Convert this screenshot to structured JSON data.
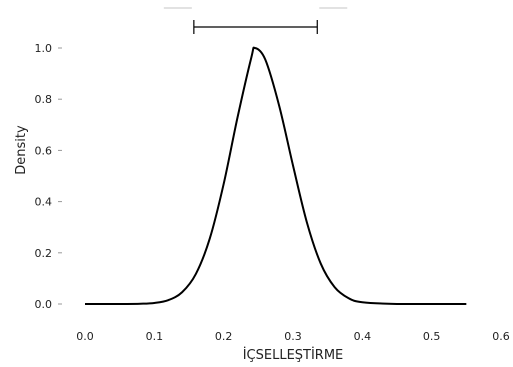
{
  "chart_data": {
    "type": "line",
    "title": "",
    "xlabel": "İÇSELLEŞTİRME",
    "ylabel": "Density",
    "xlim": [
      0.0,
      0.6
    ],
    "ylim": [
      0.0,
      1.0
    ],
    "xticks": [
      "0.0",
      "0.1",
      "0.2",
      "0.3",
      "0.4",
      "0.5",
      "0.6"
    ],
    "yticks": [
      "0.0",
      "0.2",
      "0.4",
      "0.6",
      "0.8",
      "1.0"
    ],
    "grid": false,
    "legend": "none",
    "series": [
      {
        "color": "#000000",
        "x": [
          0.0,
          0.05,
          0.08,
          0.1,
          0.12,
          0.14,
          0.16,
          0.18,
          0.2,
          0.22,
          0.24,
          0.245,
          0.26,
          0.28,
          0.3,
          0.32,
          0.34,
          0.36,
          0.38,
          0.4,
          0.45,
          0.5,
          0.55
        ],
        "y": [
          0.0,
          0.0,
          0.001,
          0.004,
          0.015,
          0.046,
          0.118,
          0.256,
          0.469,
          0.729,
          0.964,
          1.0,
          0.955,
          0.775,
          0.541,
          0.319,
          0.158,
          0.066,
          0.023,
          0.007,
          0.0,
          0.0,
          0.0
        ]
      }
    ],
    "interval": {
      "low": 0.157,
      "high": 0.335,
      "color": "#000000"
    }
  }
}
